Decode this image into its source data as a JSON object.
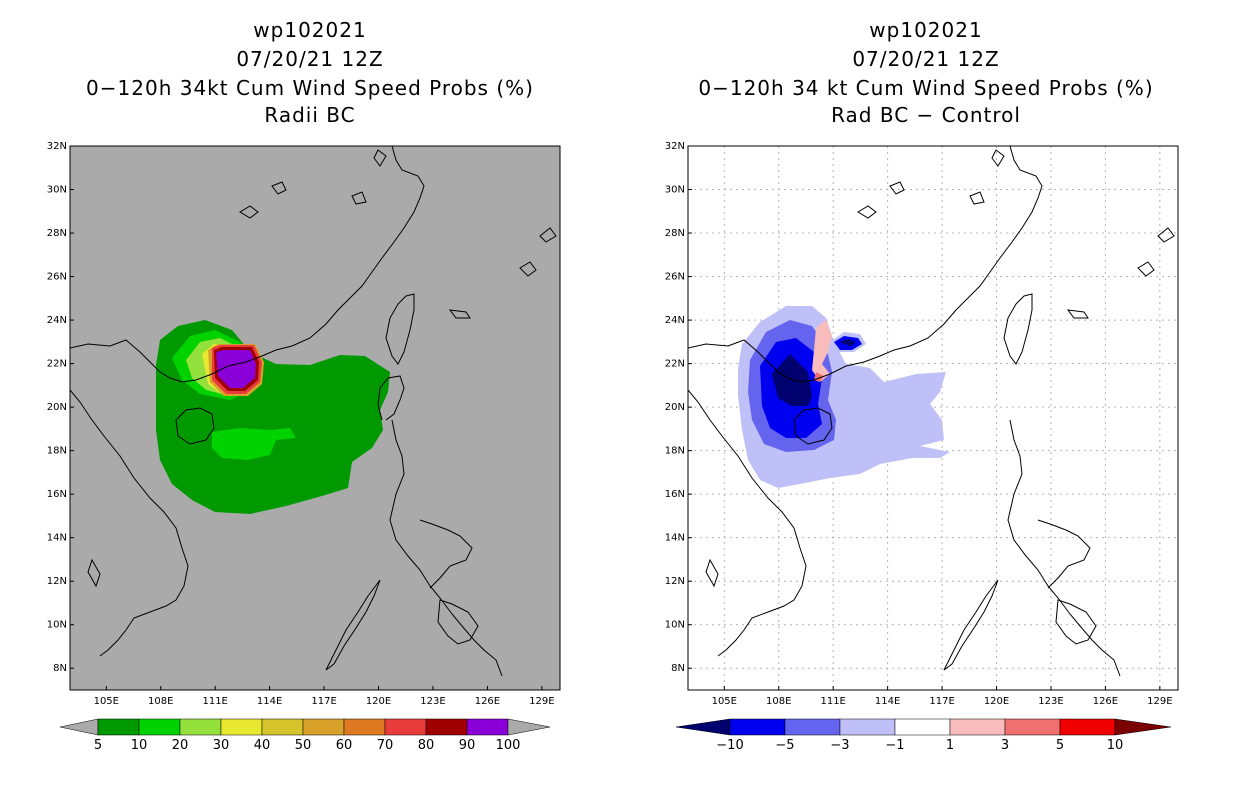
{
  "left_panel": {
    "title_lines": [
      "wp102021",
      "07/20/21 12Z",
      "0−120h 34kt Cum Wind Speed Probs (%)",
      "Radii BC"
    ],
    "lat_labels": [
      "32N",
      "30N",
      "28N",
      "26N",
      "24N",
      "22N",
      "20N",
      "18N",
      "16N",
      "14N",
      "12N",
      "10N",
      "8N"
    ],
    "lon_labels": [
      "105E",
      "108E",
      "111E",
      "114E",
      "117E",
      "120E",
      "123E",
      "126E",
      "129E"
    ],
    "colorbar": {
      "labels": [
        "5",
        "10",
        "20",
        "30",
        "40",
        "50",
        "60",
        "70",
        "80",
        "90",
        "100"
      ],
      "colors": [
        "#009a00",
        "#00d200",
        "#94e03c",
        "#e8e830",
        "#d6c42c",
        "#d8a22a",
        "#e07a22",
        "#e83c3c",
        "#a00000",
        "#8a00d8"
      ]
    },
    "background": "#aaaaaa"
  },
  "right_panel": {
    "title_lines": [
      "wp102021",
      "07/20/21 12Z",
      "0−120h 34 kt Cum Wind Speed Probs (%)",
      "Rad BC − Control"
    ],
    "lat_labels": [
      "32N",
      "30N",
      "28N",
      "26N",
      "24N",
      "22N",
      "20N",
      "18N",
      "16N",
      "14N",
      "12N",
      "10N",
      "8N"
    ],
    "lon_labels": [
      "105E",
      "108E",
      "111E",
      "114E",
      "117E",
      "120E",
      "123E",
      "126E",
      "129E"
    ],
    "colorbar": {
      "labels": [
        "−10",
        "−5",
        "−3",
        "−1",
        "1",
        "3",
        "5",
        "10"
      ],
      "colors": [
        "#00006e",
        "#0000f0",
        "#6464ee",
        "#c0c0f8",
        "#ffffff",
        "#f8bcbc",
        "#f07070",
        "#f00000",
        "#7a0000"
      ]
    },
    "background": "#ffffff"
  }
}
